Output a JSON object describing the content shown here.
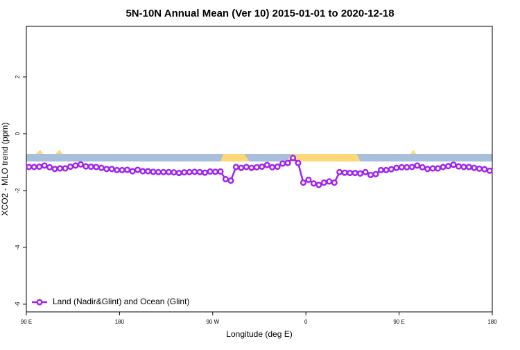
{
  "chart_data": {
    "type": "line",
    "title": "5N-10N Annual Mean (Ver 10)   2015-01-01 to 2020-12-18",
    "x_label": "Longitude (deg E)",
    "y_label": "XCO2 - MLO trend (ppm)",
    "x": [
      92.5,
      97.5,
      102.5,
      107.5,
      112.5,
      117.5,
      122.5,
      127.5,
      132.5,
      137.5,
      142.5,
      147.5,
      152.5,
      157.5,
      162.5,
      167.5,
      172.5,
      177.5,
      182.5,
      187.5,
      192.5,
      197.5,
      202.5,
      207.5,
      212.5,
      217.5,
      222.5,
      227.5,
      232.5,
      237.5,
      242.5,
      247.5,
      252.5,
      257.5,
      262.5,
      267.5,
      272.5,
      277.5,
      282.5,
      287.5,
      292.5,
      297.5,
      302.5,
      307.5,
      312.5,
      317.5,
      322.5,
      327.5,
      332.5,
      337.5,
      342.5,
      347.5,
      352.5,
      357.5,
      362.5,
      367.5,
      372.5,
      377.5,
      382.5,
      387.5,
      392.5,
      397.5,
      402.5,
      407.5,
      412.5,
      417.5,
      422.5,
      427.5,
      432.5,
      437.5,
      442.5,
      447.5,
      452.5,
      457.5,
      462.5,
      467.5,
      472.5,
      477.5,
      482.5,
      487.5,
      492.5,
      497.5,
      502.5,
      507.5,
      512.5,
      517.5,
      522.5,
      527.5,
      532.5,
      537.5
    ],
    "series": [
      {
        "name": "Land (Nadir&Glint) and Ocean (Glint)",
        "color": "#a020f0",
        "values": [
          -1.17,
          -1.17,
          -1.16,
          -1.12,
          -1.18,
          -1.24,
          -1.22,
          -1.22,
          -1.16,
          -1.12,
          -1.08,
          -1.15,
          -1.16,
          -1.17,
          -1.2,
          -1.24,
          -1.24,
          -1.28,
          -1.28,
          -1.27,
          -1.32,
          -1.27,
          -1.32,
          -1.32,
          -1.34,
          -1.35,
          -1.35,
          -1.35,
          -1.36,
          -1.38,
          -1.36,
          -1.35,
          -1.34,
          -1.35,
          -1.37,
          -1.33,
          -1.34,
          -1.33,
          -1.6,
          -1.65,
          -1.17,
          -1.2,
          -1.17,
          -1.2,
          -1.18,
          -1.16,
          -1.1,
          -1.18,
          -1.16,
          -1.05,
          -1.03,
          -0.85,
          -1.03,
          -1.72,
          -1.62,
          -1.75,
          -1.8,
          -1.72,
          -1.68,
          -1.72,
          -1.35,
          -1.37,
          -1.38,
          -1.38,
          -1.4,
          -1.35,
          -1.45,
          -1.42,
          -1.28,
          -1.28,
          -1.25,
          -1.2,
          -1.18,
          -1.18,
          -1.17,
          -1.12,
          -1.18,
          -1.24,
          -1.22,
          -1.22,
          -1.17,
          -1.14,
          -1.09,
          -1.15,
          -1.17,
          -1.17,
          -1.2,
          -1.23,
          -1.25,
          -1.3
        ]
      }
    ],
    "xlim": [
      90,
      540
    ],
    "xticks": [
      {
        "value": 90,
        "label": "90 E"
      },
      180,
      {
        "value": 270,
        "label": "90 W"
      },
      {
        "value": 360,
        "label": "0"
      },
      {
        "value": 450,
        "label": "90 E"
      },
      {
        "value": 540,
        "label": "180"
      }
    ],
    "ylim": [
      -6.27,
      3.78
    ],
    "yticks": [
      -6,
      -4,
      -2,
      0,
      2
    ],
    "legend": "bottom-left"
  }
}
